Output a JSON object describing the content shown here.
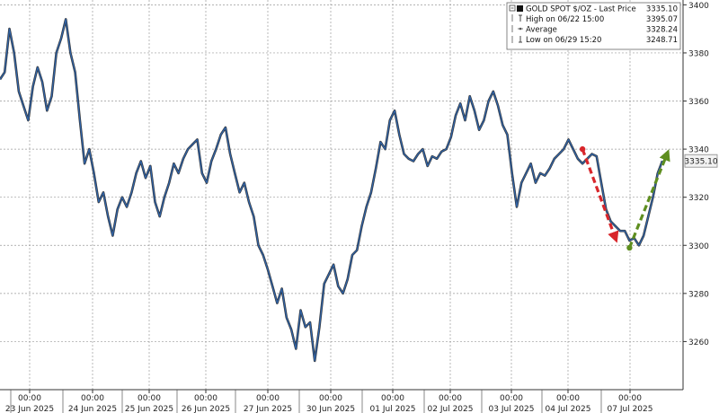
{
  "chart_data": {
    "type": "line",
    "legend": {
      "series_title": "GOLD SPOT $/OZ - Last Price",
      "series_value": "3335.10",
      "rows": [
        {
          "label": "High on 06/22 15:00",
          "value": "3395.07",
          "icon": "high-marker-icon"
        },
        {
          "label": "Average",
          "value": "3328.24",
          "icon": "average-marker-icon"
        },
        {
          "label": "Low on 06/29 15:20",
          "value": "3248.71",
          "icon": "low-marker-icon"
        }
      ],
      "placement": "top-right"
    },
    "last_price_tag": "3335.10",
    "y_axis": {
      "side": "right",
      "ylim": [
        3240,
        3402
      ],
      "ticks": [
        {
          "value": 3260,
          "label": "3260"
        },
        {
          "value": 3280,
          "label": "3280"
        },
        {
          "value": 3300,
          "label": "3300"
        },
        {
          "value": 3320,
          "label": "3320"
        },
        {
          "value": 3340,
          "label": "3340"
        },
        {
          "value": 3360,
          "label": "3360"
        },
        {
          "value": 3380,
          "label": "3380"
        },
        {
          "value": 3400,
          "label": "3400"
        }
      ]
    },
    "x_axis": {
      "time_labels": [
        "00:00",
        "00:00",
        "00:00",
        "00:00",
        "00:00",
        "00:00",
        "00:00",
        "00:00",
        "00:00",
        "00:00",
        "00:00"
      ],
      "date_labels": [
        "23 Jun 2025",
        "24 Jun 2025",
        "25 Jun 2025",
        "26 Jun 2025",
        "27 Jun 2025",
        "30 Jun 2025",
        "01 Jul 2025",
        "02 Jul 2025",
        "03 Jul 2025",
        "04 Jul 2025",
        "07 Jul 2025"
      ]
    },
    "grid": true,
    "colors": {
      "line": "#2f63a8",
      "line_dark": "#111111",
      "red_arrow": "#d8262b",
      "green_arrow": "#5e8e1f",
      "grid": "#9a9a9a"
    },
    "series": [
      {
        "values": [
          3369,
          3372,
          3390,
          3380,
          3364,
          3358,
          3352,
          3366,
          3374,
          3368,
          3356,
          3362,
          3380,
          3386,
          3394,
          3380,
          3372,
          3352,
          3334,
          3340,
          3330,
          3318,
          3322,
          3312,
          3304,
          3315,
          3320,
          3316,
          3322,
          3330,
          3335,
          3328,
          3333,
          3318,
          3312,
          3320,
          3326,
          3334,
          3330,
          3336,
          3340,
          3342,
          3344,
          3330,
          3326,
          3335,
          3340,
          3346,
          3349,
          3338,
          3330,
          3322,
          3326,
          3318,
          3312,
          3300,
          3296,
          3290,
          3283,
          3276,
          3282,
          3270,
          3265,
          3257,
          3273,
          3266,
          3268,
          3252,
          3266,
          3284,
          3288,
          3292,
          3283,
          3280,
          3286,
          3296,
          3298,
          3308,
          3316,
          3322,
          3332,
          3343,
          3340,
          3352,
          3356,
          3346,
          3338,
          3336,
          3335,
          3338,
          3340,
          3333,
          3337,
          3336,
          3339,
          3340,
          3345,
          3354,
          3359,
          3352,
          3362,
          3356,
          3348,
          3352,
          3360,
          3364,
          3358,
          3350,
          3346,
          3330,
          3316,
          3326,
          3330,
          3334,
          3326,
          3330,
          3329,
          3332,
          3336,
          3338,
          3340,
          3344,
          3340,
          3336,
          3334,
          3336,
          3338,
          3337,
          3326,
          3315,
          3310,
          3308,
          3306,
          3306,
          3302,
          3303,
          3300,
          3304,
          3312,
          3320,
          3330,
          3335.1
        ]
      }
    ],
    "annotations": [
      {
        "type": "arrow",
        "color": "red",
        "from": {
          "x_index": 124,
          "y": 3340
        },
        "to": {
          "x_index": 131,
          "y": 3303
        }
      },
      {
        "type": "arrow",
        "color": "green",
        "from": {
          "x_index": 134,
          "y": 3299
        },
        "to": {
          "x_index": 142,
          "y": 3338
        }
      }
    ]
  }
}
